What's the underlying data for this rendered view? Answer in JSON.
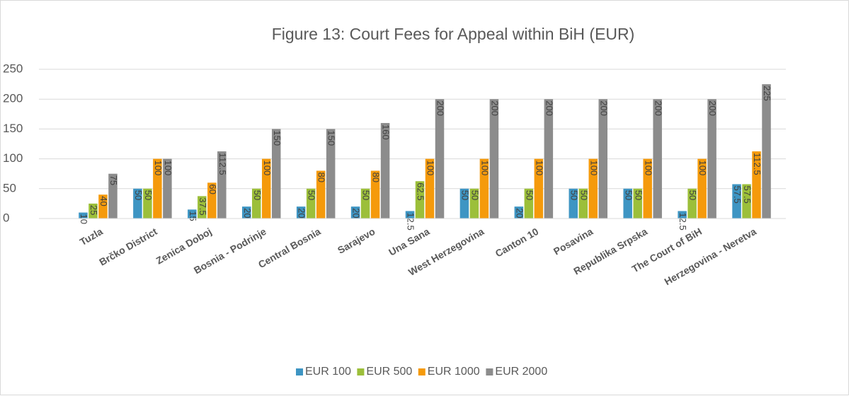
{
  "chart_data": {
    "type": "bar",
    "title": "Figure 13: Court Fees for Appeal within BiH (EUR)",
    "categories": [
      "Tuzla",
      "Brčko District",
      "Zenica Doboj",
      "Bosnia - Podrinje",
      "Central Bosnia",
      "Sarajevo",
      "Una Sana",
      "West Herzegovina",
      "Canton 10",
      "Posavina",
      "Republika Srpska",
      "The Court of BiH",
      "Herzegovina - Neretva"
    ],
    "series": [
      {
        "name": "EUR 100",
        "color": "#3e95c3",
        "values": [
          10,
          50,
          15,
          20,
          20,
          20,
          12.5,
          50,
          20,
          50,
          50,
          12.5,
          57.5
        ]
      },
      {
        "name": "EUR 500",
        "color": "#9cbf3a",
        "values": [
          25,
          50,
          37.5,
          50,
          50,
          50,
          62.5,
          50,
          50,
          50,
          50,
          50,
          57.5
        ]
      },
      {
        "name": "EUR 1000",
        "color": "#f59a0b",
        "values": [
          40,
          100,
          60,
          100,
          80,
          80,
          100,
          100,
          100,
          100,
          100,
          100,
          112.5
        ]
      },
      {
        "name": "EUR 2000",
        "color": "#8c8c8c",
        "values": [
          75,
          100,
          112.5,
          150,
          150,
          160,
          200,
          200,
          200,
          200,
          200,
          200,
          225
        ]
      }
    ],
    "ylim": [
      0,
      250
    ],
    "yticks": [
      0,
      50,
      100,
      150,
      200,
      250
    ],
    "grid": true,
    "legend": "bottom"
  }
}
